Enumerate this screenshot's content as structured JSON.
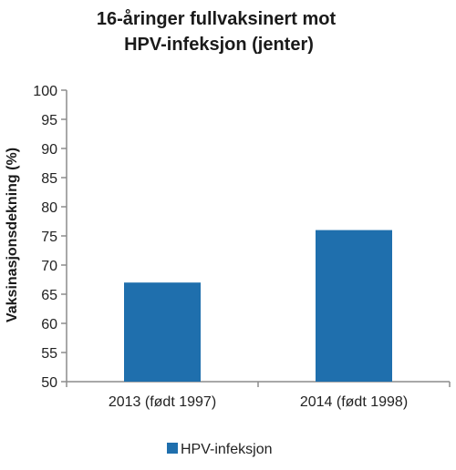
{
  "chart_data": {
    "type": "bar",
    "title_lines": [
      "16-åringer fullvaksinert mot",
      "HPV-infeksjon (jenter)"
    ],
    "ylabel": "Vaksinasjonsdekning (%)",
    "xlabel": "",
    "categories": [
      "2013 (født 1997)",
      "2014 (født 1998)"
    ],
    "series": [
      {
        "name": "HPV-infeksjon",
        "values": [
          67,
          76
        ]
      }
    ],
    "ylim": [
      50,
      100
    ],
    "yticks": [
      "50",
      "55",
      "60",
      "65",
      "70",
      "75",
      "80",
      "85",
      "90",
      "95",
      "100"
    ],
    "grid": false,
    "legend_position": "bottom-left",
    "bar_color": "#1f6fad",
    "axis_color": "#8c8c8c"
  }
}
